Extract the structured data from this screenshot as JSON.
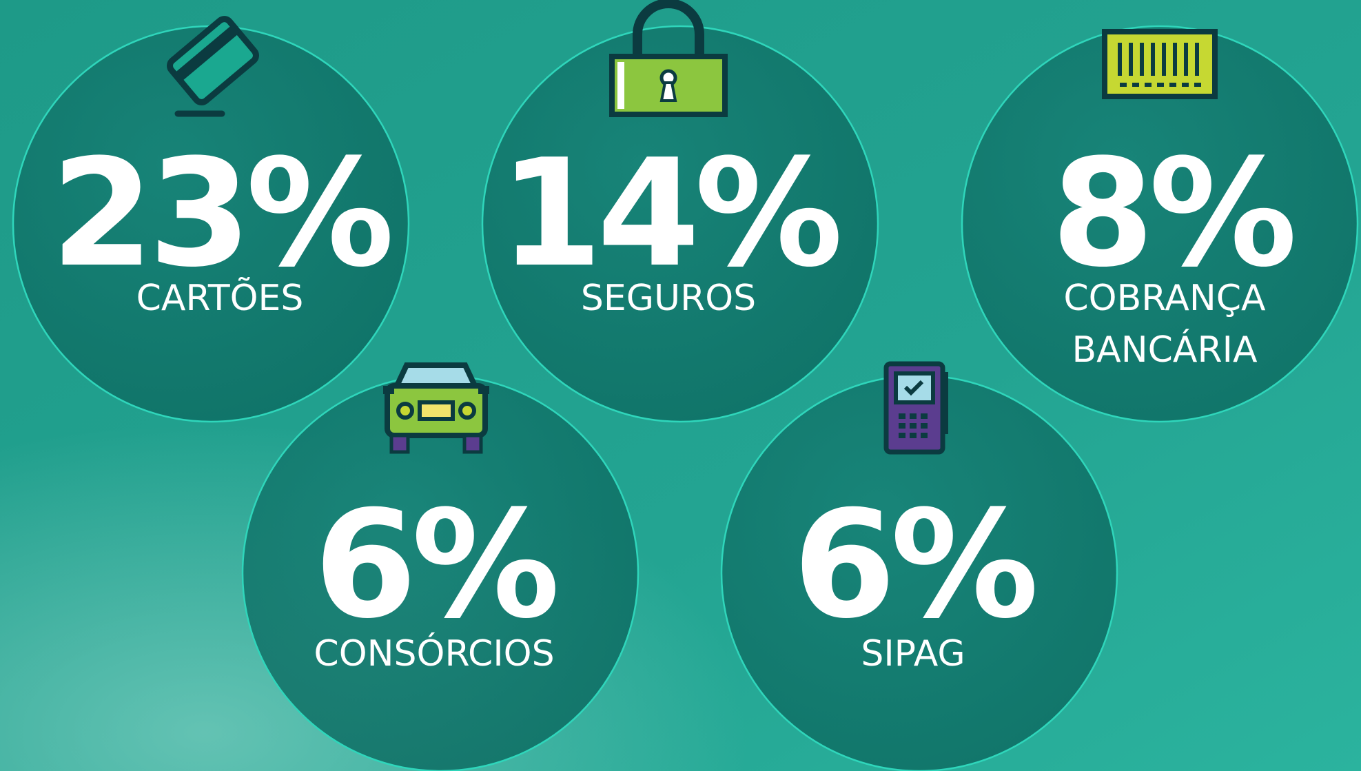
{
  "items": [
    {
      "value": "23%",
      "label": [
        "CARTÕES"
      ]
    },
    {
      "value": "14%",
      "label": [
        "SEGUROS"
      ]
    },
    {
      "value": "8%",
      "label": [
        "COBRANÇA",
        "BANCÁRIA"
      ]
    },
    {
      "value": "6%",
      "label": [
        "CONSÓRCIOS"
      ]
    },
    {
      "value": "6%",
      "label": [
        "SIPAG"
      ]
    }
  ]
}
